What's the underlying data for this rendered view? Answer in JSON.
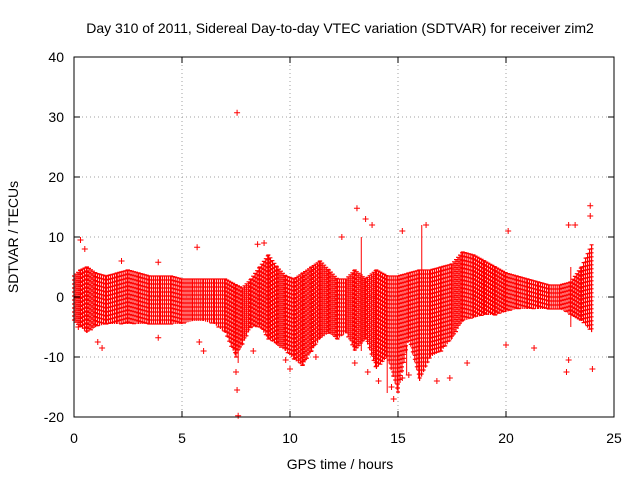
{
  "chart_data": {
    "type": "scatter",
    "title": "Day 310 of 2011, Sidereal Day-to-day VTEC variation (SDTVAR) for receiver zim2",
    "xlabel": "GPS time / hours",
    "ylabel": "SDTVAR / TECUs",
    "xlim": [
      0,
      25
    ],
    "ylim": [
      -20,
      40
    ],
    "xticks": [
      0,
      5,
      10,
      15,
      20,
      25
    ],
    "xtick_labels": [
      "0",
      "5",
      "10",
      "15",
      "20",
      "25"
    ],
    "yticks": [
      -20,
      -10,
      0,
      10,
      20,
      30,
      40
    ],
    "ytick_labels": [
      "-20",
      "-10",
      "0",
      "10",
      "20",
      "30",
      "40"
    ],
    "grid": true,
    "marker": "+",
    "series": [
      {
        "name": "SDTVAR",
        "color": "#ff0000",
        "envelope": {
          "x": [
            0.0,
            0.3,
            0.6,
            1.0,
            1.5,
            2.0,
            2.5,
            3.0,
            3.5,
            4.0,
            4.5,
            5.0,
            5.5,
            6.0,
            6.5,
            7.0,
            7.5,
            7.8,
            8.2,
            8.6,
            9.0,
            9.4,
            9.8,
            10.2,
            10.6,
            11.0,
            11.4,
            11.8,
            12.2,
            12.6,
            13.0,
            13.5,
            14.0,
            14.5,
            15.0,
            15.5,
            16.0,
            16.5,
            17.0,
            17.5,
            18.0,
            18.5,
            19.0,
            19.5,
            20.0,
            20.5,
            21.0,
            21.5,
            22.0,
            22.5,
            23.0,
            23.5,
            24.0
          ],
          "upper": [
            3.5,
            4.5,
            5.0,
            4.0,
            3.5,
            4.0,
            4.5,
            4.0,
            3.5,
            3.5,
            3.5,
            3.0,
            3.0,
            3.0,
            3.0,
            3.0,
            2.0,
            1.5,
            3.0,
            5.0,
            7.0,
            5.0,
            3.5,
            3.0,
            4.0,
            5.0,
            6.0,
            4.5,
            3.0,
            3.0,
            4.5,
            3.0,
            4.5,
            3.5,
            3.5,
            4.0,
            4.5,
            4.5,
            5.0,
            5.5,
            7.5,
            7.0,
            6.0,
            5.0,
            4.0,
            3.5,
            3.0,
            2.5,
            2.0,
            2.0,
            2.5,
            5.0,
            9.0
          ],
          "lower": [
            -4.0,
            -5.0,
            -6.0,
            -5.0,
            -4.5,
            -4.5,
            -4.5,
            -4.5,
            -4.5,
            -4.5,
            -4.5,
            -4.5,
            -4.0,
            -4.0,
            -4.5,
            -6.0,
            -10.0,
            -8.0,
            -5.0,
            -5.0,
            -7.0,
            -8.0,
            -9.0,
            -10.5,
            -11.5,
            -9.0,
            -7.0,
            -6.0,
            -7.0,
            -6.0,
            -9.0,
            -7.0,
            -12.0,
            -10.0,
            -16.0,
            -7.0,
            -14.0,
            -10.0,
            -9.0,
            -7.0,
            -4.0,
            -3.5,
            -3.0,
            -3.0,
            -2.5,
            -2.0,
            -2.0,
            -2.0,
            -2.0,
            -2.0,
            -3.0,
            -4.0,
            -6.0
          ]
        },
        "outliers": [
          [
            0.3,
            9.5
          ],
          [
            0.5,
            8.0
          ],
          [
            0.2,
            -5.0
          ],
          [
            1.1,
            -7.5
          ],
          [
            1.3,
            -8.5
          ],
          [
            2.2,
            6.0
          ],
          [
            3.9,
            5.8
          ],
          [
            3.9,
            -6.8
          ],
          [
            5.7,
            8.3
          ],
          [
            5.8,
            -7.5
          ],
          [
            6.0,
            -9.0
          ],
          [
            7.55,
            30.7
          ],
          [
            7.55,
            -15.5
          ],
          [
            7.6,
            -19.8
          ],
          [
            7.5,
            -12.5
          ],
          [
            8.5,
            8.8
          ],
          [
            8.8,
            9.0
          ],
          [
            8.3,
            -9.0
          ],
          [
            9.8,
            -10.5
          ],
          [
            10.0,
            -12.0
          ],
          [
            11.2,
            -10.0
          ],
          [
            12.4,
            10.0
          ],
          [
            13.1,
            14.8
          ],
          [
            13.5,
            13.0
          ],
          [
            13.8,
            12.0
          ],
          [
            13.0,
            -11.0
          ],
          [
            13.6,
            -12.5
          ],
          [
            14.1,
            -14.0
          ],
          [
            14.7,
            -15.0
          ],
          [
            14.8,
            -17.0
          ],
          [
            15.2,
            -13.5
          ],
          [
            15.5,
            -13.0
          ],
          [
            15.2,
            11.0
          ],
          [
            16.3,
            12.0
          ],
          [
            16.8,
            -14.0
          ],
          [
            17.4,
            -13.5
          ],
          [
            18.2,
            -11.0
          ],
          [
            20.1,
            11.0
          ],
          [
            20.0,
            -8.0
          ],
          [
            21.3,
            -8.5
          ],
          [
            22.9,
            -10.5
          ],
          [
            22.8,
            -12.5
          ],
          [
            22.9,
            12.0
          ],
          [
            23.2,
            12.0
          ],
          [
            23.9,
            15.2
          ],
          [
            23.9,
            13.5
          ],
          [
            24.0,
            -12.0
          ]
        ],
        "error_bars": [
          [
            16.1,
            1.0,
            12.0
          ],
          [
            14.5,
            -16.0,
            -10.0
          ],
          [
            15.4,
            -13.0,
            -8.0
          ],
          [
            7.6,
            -11.0,
            -5.0
          ],
          [
            13.3,
            -9.0,
            10.0
          ],
          [
            23.0,
            -5.0,
            5.0
          ]
        ]
      }
    ]
  }
}
